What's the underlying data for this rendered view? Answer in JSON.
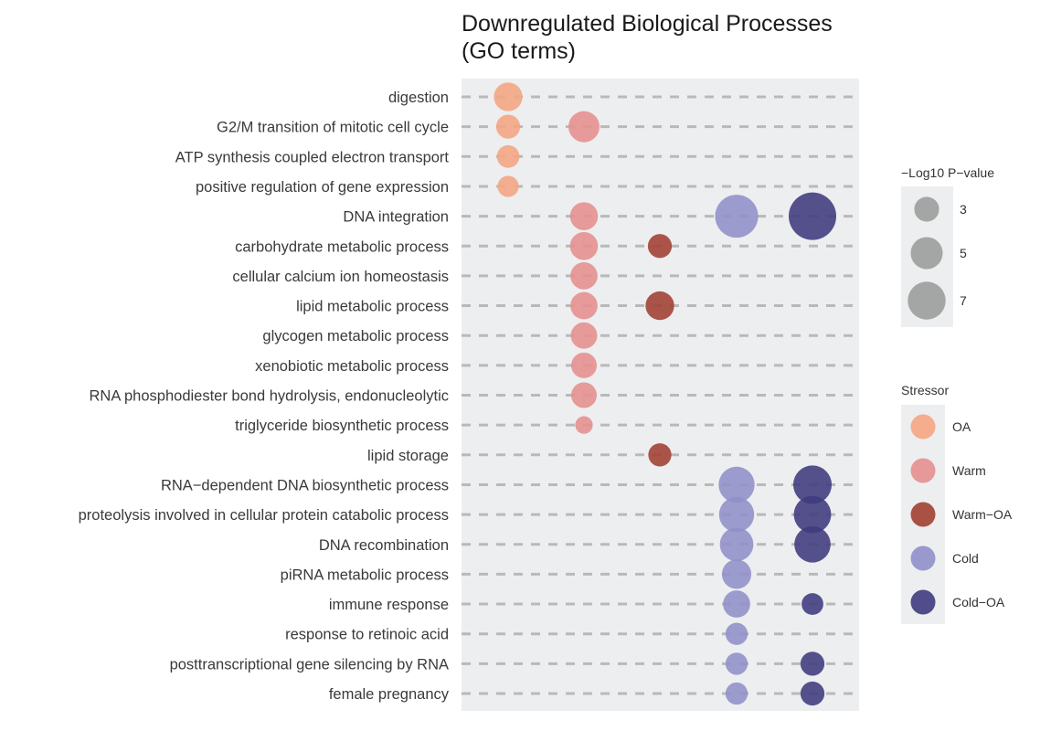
{
  "chart_data": {
    "type": "scatter",
    "title": [
      "Downregulated Biological Processes",
      "(GO terms)"
    ],
    "categories": [
      "digestion",
      "G2/M transition of mitotic cell cycle",
      "ATP synthesis coupled electron transport",
      "positive regulation of gene expression",
      "DNA integration",
      "carbohydrate metabolic process",
      "cellular calcium ion homeostasis",
      "lipid metabolic process",
      "glycogen metabolic process",
      "xenobiotic metabolic process",
      "RNA phosphodiester bond hydrolysis, endonucleolytic",
      "triglyceride biosynthetic process",
      "lipid storage",
      "RNA−dependent DNA biosynthetic process",
      "proteolysis involved in cellular protein catabolic process",
      "DNA recombination",
      "piRNA metabolic process",
      "immune response",
      "response to retinoic acid",
      "posttranscriptional gene silencing by RNA",
      "female pregnancy"
    ],
    "x_order": [
      "OA",
      "Warm",
      "Warm−OA",
      "Cold",
      "Cold−OA"
    ],
    "series": [
      {
        "name": "OA",
        "color": "#F4A582",
        "points": [
          {
            "term": "digestion",
            "neg_log10_p": 4.0
          },
          {
            "term": "G2/M transition of mitotic cell cycle",
            "neg_log10_p": 2.8
          },
          {
            "term": "ATP synthesis coupled electron transport",
            "neg_log10_p": 2.5
          },
          {
            "term": "positive regulation of gene expression",
            "neg_log10_p": 2.2
          }
        ]
      },
      {
        "name": "Warm",
        "color": "#E58E8E",
        "points": [
          {
            "term": "G2/M transition of mitotic cell cycle",
            "neg_log10_p": 4.7
          },
          {
            "term": "DNA integration",
            "neg_log10_p": 3.8
          },
          {
            "term": "carbohydrate metabolic process",
            "neg_log10_p": 3.8
          },
          {
            "term": "cellular calcium ion homeostasis",
            "neg_log10_p": 3.6
          },
          {
            "term": "lipid metabolic process",
            "neg_log10_p": 3.6
          },
          {
            "term": "glycogen metabolic process",
            "neg_log10_p": 3.4
          },
          {
            "term": "xenobiotic metabolic process",
            "neg_log10_p": 3.2
          },
          {
            "term": "RNA phosphodiester bond hydrolysis, endonucleolytic",
            "neg_log10_p": 3.2
          },
          {
            "term": "triglyceride biosynthetic process",
            "neg_log10_p": 1.5
          }
        ]
      },
      {
        "name": "Warm−OA",
        "color": "#A13F32",
        "points": [
          {
            "term": "carbohydrate metabolic process",
            "neg_log10_p": 2.8
          },
          {
            "term": "lipid metabolic process",
            "neg_log10_p": 4.0
          },
          {
            "term": "lipid storage",
            "neg_log10_p": 2.6
          }
        ]
      },
      {
        "name": "Cold",
        "color": "#8F8FCA",
        "points": [
          {
            "term": "DNA integration",
            "neg_log10_p": 9.0
          },
          {
            "term": "RNA−dependent DNA biosynthetic process",
            "neg_log10_p": 6.3
          },
          {
            "term": "proteolysis involved in cellular protein catabolic process",
            "neg_log10_p": 6.0
          },
          {
            "term": "DNA recombination",
            "neg_log10_p": 5.5
          },
          {
            "term": "piRNA metabolic process",
            "neg_log10_p": 4.2
          },
          {
            "term": "immune response",
            "neg_log10_p": 3.6
          },
          {
            "term": "response to retinoic acid",
            "neg_log10_p": 2.4
          },
          {
            "term": "posttranscriptional gene silencing by RNA",
            "neg_log10_p": 2.4
          },
          {
            "term": "female pregnancy",
            "neg_log10_p": 2.4
          }
        ]
      },
      {
        "name": "Cold−OA",
        "color": "#3F3A7E",
        "points": [
          {
            "term": "DNA integration",
            "neg_log10_p": 11.0
          },
          {
            "term": "RNA−dependent DNA biosynthetic process",
            "neg_log10_p": 7.2
          },
          {
            "term": "proteolysis involved in cellular protein catabolic process",
            "neg_log10_p": 6.8
          },
          {
            "term": "DNA recombination",
            "neg_log10_p": 6.4
          },
          {
            "term": "immune response",
            "neg_log10_p": 2.3
          },
          {
            "term": "posttranscriptional gene silencing by RNA",
            "neg_log10_p": 2.8
          },
          {
            "term": "female pregnancy",
            "neg_log10_p": 2.8
          }
        ]
      }
    ],
    "size_legend": {
      "title": "−Log10 P−value",
      "values": [
        3,
        5,
        7
      ],
      "labels": [
        "3",
        "5",
        "7"
      ],
      "color": "#A0A0A0"
    },
    "color_legend": {
      "title": "Stressor"
    },
    "grid": true,
    "gridline_style": "dashed",
    "panel_color": "#EDEEEF",
    "legend_position": "right"
  }
}
